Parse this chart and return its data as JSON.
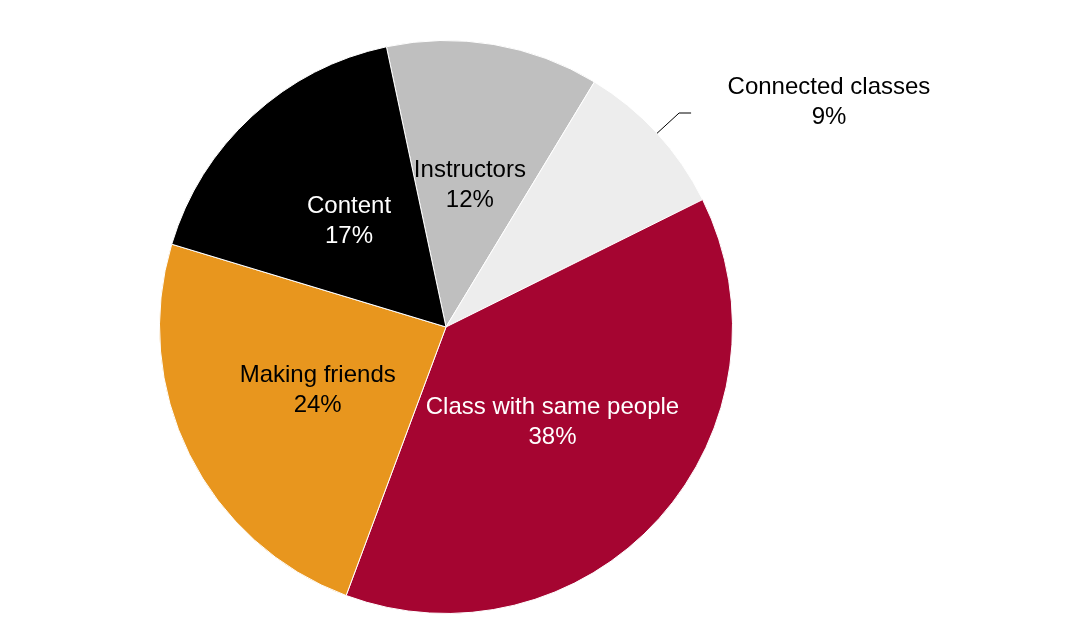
{
  "chart_data": {
    "type": "pie",
    "categories": [
      "Instructors",
      "Connected classes",
      "Class with same people",
      "Making friends",
      "Content"
    ],
    "values": [
      12,
      9,
      38,
      24,
      17
    ],
    "value_labels": [
      "12%",
      "9%",
      "38%",
      "24%",
      "17%"
    ],
    "colors": [
      "#bfbfbf",
      "#ededed",
      "#a50531",
      "#e8961e",
      "#000000"
    ],
    "legend": false
  }
}
